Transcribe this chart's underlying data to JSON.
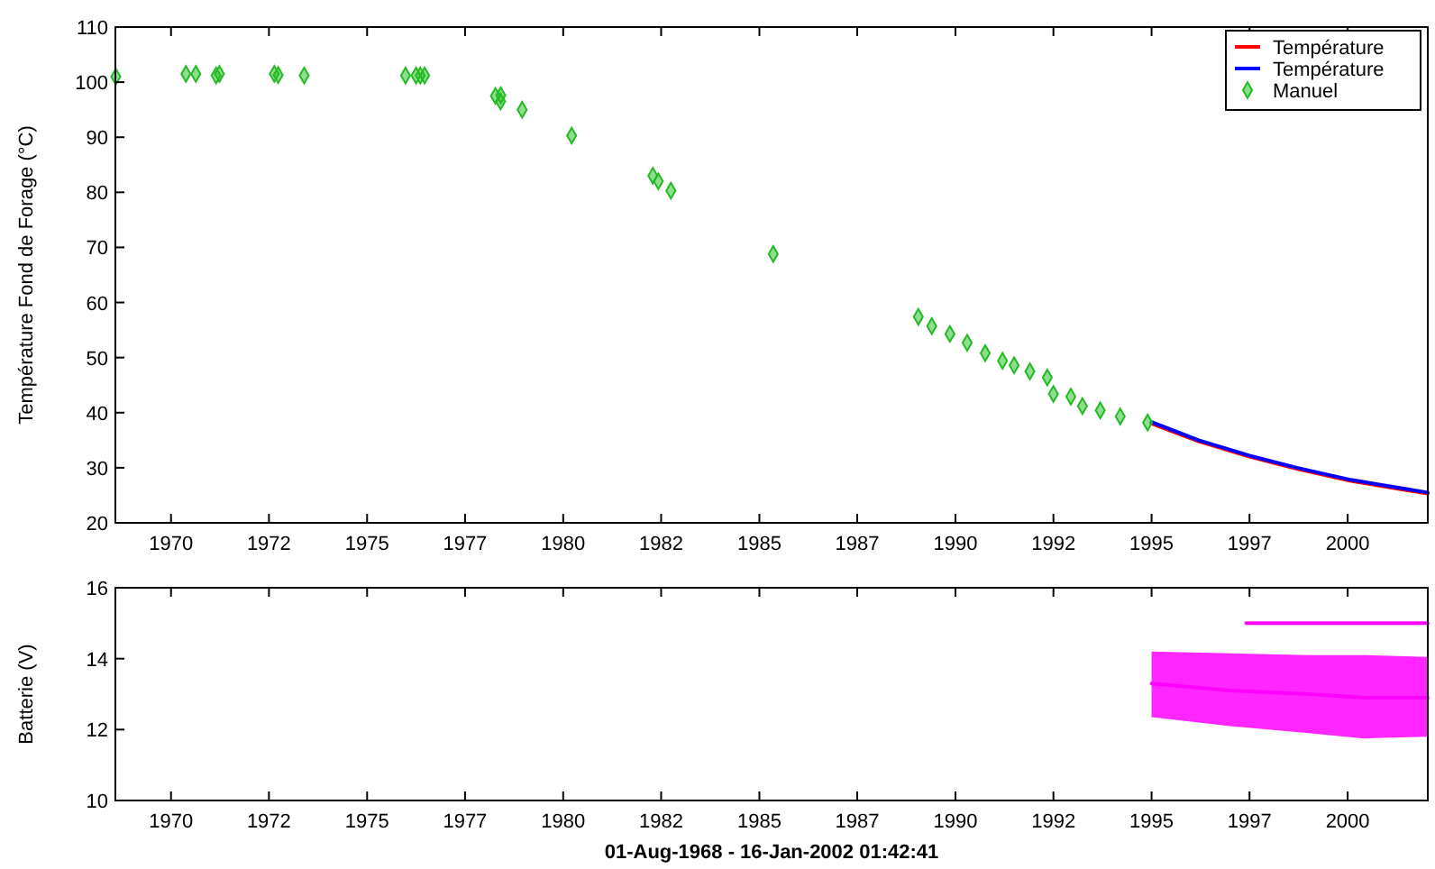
{
  "chart_data": [
    {
      "type": "scatter",
      "ylabel": "Température Fond de Forage (°C)",
      "xlim": [
        "1968-08-01",
        "2002-01-16T01:42"
      ],
      "ylim": [
        20,
        110
      ],
      "xticks": [
        {
          "value": "1970-01-01",
          "label": "1970"
        },
        {
          "value": "1972-07-01",
          "label": "1972"
        },
        {
          "value": "1975-01-01",
          "label": "1975"
        },
        {
          "value": "1977-07-01",
          "label": "1977"
        },
        {
          "value": "1980-01-01",
          "label": "1980"
        },
        {
          "value": "1982-07-01",
          "label": "1982"
        },
        {
          "value": "1985-01-01",
          "label": "1985"
        },
        {
          "value": "1987-07-01",
          "label": "1987"
        },
        {
          "value": "1990-01-01",
          "label": "1990"
        },
        {
          "value": "1992-07-01",
          "label": "1992"
        },
        {
          "value": "1995-01-01",
          "label": "1995"
        },
        {
          "value": "1997-07-01",
          "label": "1997"
        },
        {
          "value": "2000-01-01",
          "label": "2000"
        }
      ],
      "yticks": [
        20,
        30,
        40,
        50,
        60,
        70,
        80,
        90,
        100,
        110
      ],
      "grid": false,
      "legend": "top right",
      "series": [
        {
          "name": "Température",
          "type": "line",
          "color": "#ff0000",
          "x": [
            "1995-01-01",
            "1996-03-15",
            "1997-07-01",
            "1998-09-15",
            "2000-02-01",
            "2001-07-15",
            "2002-01-15"
          ],
          "values": [
            38.0,
            34.8,
            32.0,
            29.8,
            27.6,
            25.9,
            25.3
          ]
        },
        {
          "name": "Température",
          "type": "line",
          "color": "#0000ff",
          "x": [
            "1995-01-01",
            "1996-03-15",
            "1997-07-01",
            "1998-09-15",
            "2000-02-01",
            "2001-07-15",
            "2002-01-15"
          ],
          "values": [
            38.3,
            35.0,
            32.2,
            30.0,
            27.8,
            26.1,
            25.5
          ]
        },
        {
          "name": "Manuel",
          "marker": "diamond",
          "color": "#22bb22",
          "x": [
            "1968-08-05",
            "1970-05-20",
            "1970-08-20",
            "1971-02-25",
            "1971-03-28",
            "1972-08-20",
            "1972-09-25",
            "1973-05-25",
            "1975-12-25",
            "1976-04-01",
            "1976-05-10",
            "1976-06-20",
            "1978-04-10",
            "1978-05-28",
            "1978-05-30",
            "1978-12-15",
            "1980-03-20",
            "1982-04-15",
            "1982-06-05",
            "1982-09-30",
            "1985-05-10",
            "1989-01-20",
            "1989-05-25",
            "1989-11-10",
            "1990-04-20",
            "1990-10-05",
            "1991-03-15",
            "1991-07-01",
            "1991-11-25",
            "1992-05-05",
            "1992-07-01",
            "1992-12-10",
            "1993-03-28",
            "1993-09-10",
            "1994-03-15",
            "1994-11-25"
          ],
          "values": [
            101,
            101.5,
            101.5,
            101.2,
            101.5,
            101.5,
            101.3,
            101.2,
            101.2,
            101.2,
            101.2,
            101.2,
            97.5,
            96.5,
            97.6,
            95,
            90.3,
            83,
            82,
            80.3,
            68.8,
            57.4,
            55.7,
            54.3,
            52.7,
            50.8,
            49.4,
            48.6,
            47.5,
            46.4,
            43.4,
            42.9,
            41.2,
            40.4,
            39.3,
            38.2
          ]
        }
      ]
    },
    {
      "type": "line",
      "ylabel": "Batterie (V)",
      "xlabel": "01-Aug-1968 - 16-Jan-2002 01:42:41",
      "xlim": [
        "1968-08-01",
        "2002-01-16T01:42"
      ],
      "ylim": [
        10,
        16
      ],
      "xticks": [
        {
          "value": "1970-01-01",
          "label": "1970"
        },
        {
          "value": "1972-07-01",
          "label": "1972"
        },
        {
          "value": "1975-01-01",
          "label": "1975"
        },
        {
          "value": "1977-07-01",
          "label": "1977"
        },
        {
          "value": "1980-01-01",
          "label": "1980"
        },
        {
          "value": "1982-07-01",
          "label": "1982"
        },
        {
          "value": "1985-01-01",
          "label": "1985"
        },
        {
          "value": "1987-07-01",
          "label": "1987"
        },
        {
          "value": "1990-01-01",
          "label": "1990"
        },
        {
          "value": "1992-07-01",
          "label": "1992"
        },
        {
          "value": "1995-01-01",
          "label": "1995"
        },
        {
          "value": "1997-07-01",
          "label": "1997"
        },
        {
          "value": "2000-01-01",
          "label": "2000"
        }
      ],
      "yticks": [
        10,
        12,
        14,
        16
      ],
      "grid": false,
      "series": [
        {
          "color": "#ff00ff",
          "x": [
            "1995-01-01",
            "1997-01-01",
            "1999-01-01",
            "2000-06-01",
            "2002-01-15"
          ],
          "values": [
            13.3,
            13.1,
            13.0,
            12.9,
            12.9
          ],
          "lower": [
            12.35,
            12.1,
            11.9,
            11.75,
            11.8
          ],
          "upper": [
            14.2,
            14.15,
            14.1,
            14.1,
            14.05
          ]
        },
        {
          "color": "#ff00ff",
          "x": [
            "1997-06-01",
            "2002-01-15"
          ],
          "values": [
            15,
            15
          ]
        }
      ]
    }
  ]
}
